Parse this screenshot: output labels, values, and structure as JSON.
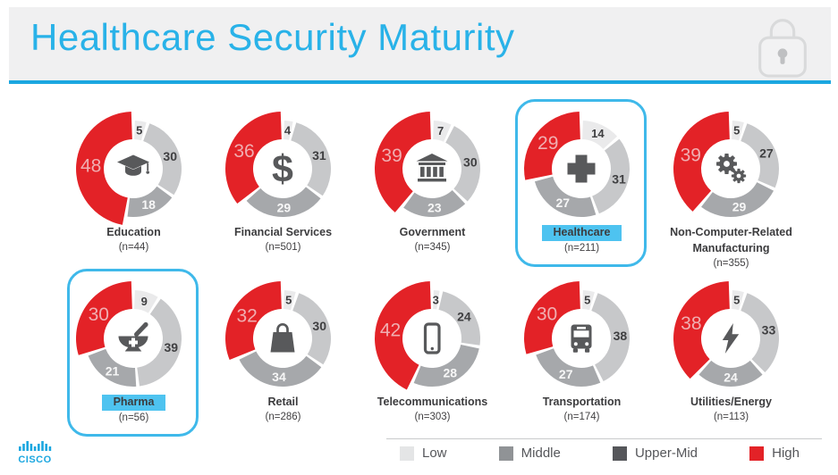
{
  "header": {
    "title": "Healthcare Security Maturity",
    "lock_icon": "lock-icon"
  },
  "footer": {
    "brand": "cisco"
  },
  "legend": {
    "items": [
      {
        "label": "Low",
        "color": "#e4e5e6"
      },
      {
        "label": "Middle",
        "color": "#909396"
      },
      {
        "label": "Upper-Mid",
        "color": "#55565a"
      },
      {
        "label": "High",
        "color": "#e32227"
      }
    ]
  },
  "colors": {
    "accent": "#29b2e8",
    "accent_line": "#1ba7e0",
    "header_bg": "#f0f0f1",
    "highlight_border": "#3fb9ea",
    "highlight_label_bg": "#4ec3f0",
    "icon": "#58595b",
    "label_dark": "#3f3f41",
    "label_light": "#f7f7f7",
    "label_high": "#f0aeb1",
    "donut": {
      "low": "#eaeaeb",
      "middle": "#c7c8ca",
      "upper_mid": "#a6a8ab",
      "high": "#e32227"
    }
  },
  "chart_data": {
    "type": "donut",
    "legend_order": [
      "Low",
      "Middle",
      "Upper-Mid",
      "High"
    ],
    "charts": [
      {
        "name": "Education",
        "name_lines": [
          "Education"
        ],
        "n_label": "(n=44)",
        "icon": "graduation-cap-icon",
        "highlighted": false,
        "values": {
          "low": 5,
          "middle": 30,
          "upper_mid": 18,
          "high": 48
        }
      },
      {
        "name": "Financial Services",
        "name_lines": [
          "Financial Services"
        ],
        "n_label": "(n=501)",
        "icon": "dollar-icon",
        "highlighted": false,
        "values": {
          "low": 4,
          "middle": 31,
          "upper_mid": 29,
          "high": 36
        }
      },
      {
        "name": "Government",
        "name_lines": [
          "Government"
        ],
        "n_label": "(n=345)",
        "icon": "bank-icon",
        "highlighted": false,
        "values": {
          "low": 7,
          "middle": 30,
          "upper_mid": 23,
          "high": 39
        }
      },
      {
        "name": "Healthcare",
        "name_lines": [
          "Healthcare"
        ],
        "n_label": "(n=211)",
        "icon": "medical-cross-icon",
        "highlighted": true,
        "values": {
          "low": 14,
          "middle": 31,
          "upper_mid": 27,
          "high": 29
        }
      },
      {
        "name": "Non-Computer-Related Manufacturing",
        "name_lines": [
          "Non-Computer-Related",
          "Manufacturing"
        ],
        "n_label": "(n=355)",
        "icon": "gears-icon",
        "highlighted": false,
        "values": {
          "low": 5,
          "middle": 27,
          "upper_mid": 29,
          "high": 39
        }
      },
      {
        "name": "Pharma",
        "name_lines": [
          "Pharma"
        ],
        "n_label": "(n=56)",
        "icon": "mortar-pestle-icon",
        "highlighted": true,
        "values": {
          "low": 9,
          "middle": 39,
          "upper_mid": 21,
          "high": 30
        }
      },
      {
        "name": "Retail",
        "name_lines": [
          "Retail"
        ],
        "n_label": "(n=286)",
        "icon": "shopping-bag-icon",
        "highlighted": false,
        "values": {
          "low": 5,
          "middle": 30,
          "upper_mid": 34,
          "high": 32
        }
      },
      {
        "name": "Telecommunications",
        "name_lines": [
          "Telecommunications"
        ],
        "n_label": "(n=303)",
        "icon": "smartphone-icon",
        "highlighted": false,
        "values": {
          "low": 3,
          "middle": 24,
          "upper_mid": 28,
          "high": 42
        }
      },
      {
        "name": "Transportation",
        "name_lines": [
          "Transportation"
        ],
        "n_label": "(n=174)",
        "icon": "bus-icon",
        "highlighted": false,
        "values": {
          "low": 5,
          "middle": 38,
          "upper_mid": 27,
          "high": 30
        }
      },
      {
        "name": "Utilities/Energy",
        "name_lines": [
          "Utilities/Energy"
        ],
        "n_label": "(n=113)",
        "icon": "lightning-bolt-icon",
        "highlighted": false,
        "values": {
          "low": 5,
          "middle": 33,
          "upper_mid": 24,
          "high": 38
        }
      }
    ]
  }
}
